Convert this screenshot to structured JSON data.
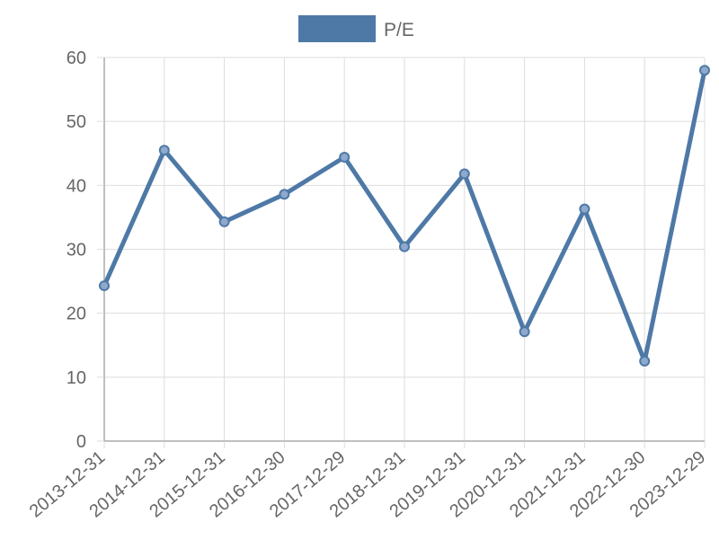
{
  "chart_data": {
    "type": "line",
    "title": "",
    "xlabel": "",
    "ylabel": "",
    "legend_position": "top-center",
    "grid": true,
    "categories": [
      "2013-12-31",
      "2014-12-31",
      "2015-12-31",
      "2016-12-30",
      "2017-12-29",
      "2018-12-31",
      "2019-12-31",
      "2020-12-31",
      "2021-12-31",
      "2022-12-30",
      "2023-12-29"
    ],
    "series": [
      {
        "name": "P/E",
        "color": "#4e79a7",
        "values": [
          24.3,
          45.5,
          34.3,
          38.6,
          44.4,
          30.4,
          41.8,
          17.1,
          36.3,
          12.5,
          58.0
        ]
      }
    ],
    "ylim": [
      0,
      60
    ],
    "yticks": [
      0,
      10,
      20,
      30,
      40,
      50,
      60
    ]
  }
}
